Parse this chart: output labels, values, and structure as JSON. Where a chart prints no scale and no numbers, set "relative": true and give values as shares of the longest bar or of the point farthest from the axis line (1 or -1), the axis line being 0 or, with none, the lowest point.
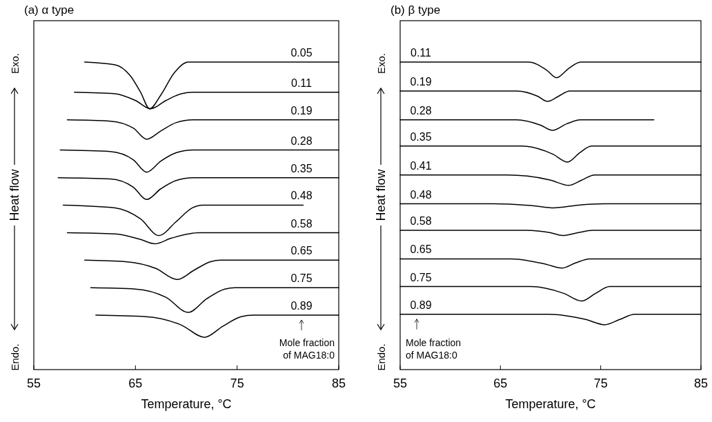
{
  "chart_data": [
    {
      "type": "line",
      "title": "(a) α type",
      "xlabel": "Temperature, °C",
      "ylabel": "Heat flow",
      "relative": true,
      "xlim": [
        55,
        85
      ],
      "xticks": [
        55,
        65,
        75,
        85
      ],
      "line_style": "solid",
      "annotations": [
        "Exo.",
        "Endo.",
        "Mole fraction\nof MAG18:0"
      ],
      "series": [
        {
          "name": "0.05",
          "color": "#000000",
          "x": [
            60.0,
            63.0,
            64.5,
            65.5,
            66.4,
            67.5,
            68.8,
            70.2,
            85
          ],
          "values": [
            1.0,
            0.991,
            0.955,
            0.902,
            0.848,
            0.893,
            0.964,
            1.0,
            1.0
          ]
        },
        {
          "name": "0.11",
          "color": "#000000",
          "x": [
            59.0,
            63.0,
            65.0,
            66.5,
            68.0,
            69.5,
            70.7,
            85
          ],
          "values": [
            0.902,
            0.897,
            0.875,
            0.848,
            0.875,
            0.897,
            0.902,
            0.902
          ]
        },
        {
          "name": "0.19",
          "color": "#000000",
          "x": [
            58.3,
            62.5,
            64.8,
            66.1,
            67.5,
            69.0,
            70.7,
            85
          ],
          "values": [
            0.812,
            0.808,
            0.785,
            0.749,
            0.776,
            0.803,
            0.812,
            0.812
          ]
        },
        {
          "name": "0.28",
          "color": "#000000",
          "x": [
            57.6,
            62.5,
            64.8,
            66.1,
            67.5,
            69.0,
            70.7,
            85
          ],
          "values": [
            0.714,
            0.709,
            0.682,
            0.642,
            0.678,
            0.705,
            0.714,
            0.714
          ]
        },
        {
          "name": "0.35",
          "color": "#000000",
          "x": [
            57.4,
            62.5,
            64.8,
            66.1,
            67.5,
            69.0,
            70.7,
            85
          ],
          "values": [
            0.624,
            0.62,
            0.593,
            0.553,
            0.588,
            0.615,
            0.624,
            0.624
          ]
        },
        {
          "name": "0.48",
          "color": "#000000",
          "x": [
            57.9,
            63.0,
            65.5,
            67.3,
            69.0,
            70.6,
            71.6,
            81.5
          ],
          "values": [
            0.535,
            0.526,
            0.49,
            0.436,
            0.481,
            0.526,
            0.535,
            0.535
          ]
        },
        {
          "name": "0.58",
          "color": "#000000",
          "x": [
            58.3,
            63.0,
            65.5,
            66.9,
            68.5,
            70.2,
            71.2,
            85
          ],
          "values": [
            0.445,
            0.441,
            0.423,
            0.409,
            0.427,
            0.441,
            0.445,
            0.445
          ]
        },
        {
          "name": "0.65",
          "color": "#000000",
          "x": [
            60.0,
            64.0,
            67.0,
            69.1,
            70.8,
            72.4,
            73.4,
            85
          ],
          "values": [
            0.356,
            0.351,
            0.329,
            0.293,
            0.324,
            0.351,
            0.356,
            0.356
          ]
        },
        {
          "name": "0.75",
          "color": "#000000",
          "x": [
            60.6,
            65.0,
            68.0,
            70.2,
            72.0,
            73.8,
            74.8,
            85
          ],
          "values": [
            0.266,
            0.262,
            0.235,
            0.186,
            0.23,
            0.262,
            0.266,
            0.266
          ]
        },
        {
          "name": "0.89",
          "color": "#000000",
          "x": [
            61.1,
            66.0,
            69.5,
            71.8,
            73.6,
            75.4,
            76.6,
            85
          ],
          "values": [
            0.177,
            0.172,
            0.145,
            0.105,
            0.141,
            0.172,
            0.177,
            0.177
          ]
        }
      ]
    },
    {
      "type": "line",
      "title": "(b) β type",
      "xlabel": "Temperature, °C",
      "ylabel": "Heat flow",
      "relative": true,
      "xlim": [
        55,
        85
      ],
      "xticks": [
        55,
        65,
        75,
        85
      ],
      "line_style": "solid",
      "annotations": [
        "Exo.",
        "Endo.",
        "Mole fraction\nof MAG18:0"
      ],
      "series": [
        {
          "name": "0.11",
          "color": "#000000",
          "x": [
            55,
            67.8,
            69.6,
            70.6,
            71.8,
            73.0,
            85
          ],
          "values": [
            1.0,
            1.0,
            0.974,
            0.949,
            0.979,
            1.0,
            1.0
          ]
        },
        {
          "name": "0.19",
          "color": "#000000",
          "x": [
            55,
            66.6,
            68.7,
            69.7,
            70.8,
            71.9,
            85
          ],
          "values": [
            0.906,
            0.906,
            0.889,
            0.872,
            0.889,
            0.906,
            0.906
          ]
        },
        {
          "name": "0.28",
          "color": "#000000",
          "x": [
            55,
            66.6,
            69.0,
            70.2,
            71.6,
            73.0,
            80.3
          ],
          "values": [
            0.812,
            0.812,
            0.795,
            0.778,
            0.799,
            0.812,
            0.812
          ]
        },
        {
          "name": "0.35",
          "color": "#000000",
          "x": [
            55,
            67.1,
            70.2,
            71.7,
            72.9,
            74.1,
            85
          ],
          "values": [
            0.727,
            0.727,
            0.701,
            0.675,
            0.705,
            0.727,
            0.727
          ]
        },
        {
          "name": "0.41",
          "color": "#000000",
          "x": [
            55,
            65.7,
            70.0,
            71.8,
            73.1,
            74.4,
            85
          ],
          "values": [
            0.633,
            0.633,
            0.616,
            0.599,
            0.616,
            0.633,
            0.633
          ]
        },
        {
          "name": "0.48",
          "color": "#000000",
          "x": [
            55,
            64.3,
            68.5,
            70.3,
            72.8,
            75.4,
            85
          ],
          "values": [
            0.539,
            0.539,
            0.532,
            0.526,
            0.535,
            0.539,
            0.539
          ]
        },
        {
          "name": "0.58",
          "color": "#000000",
          "x": [
            55,
            67.5,
            70.0,
            71.2,
            72.7,
            74.2,
            85
          ],
          "values": [
            0.453,
            0.453,
            0.445,
            0.436,
            0.445,
            0.453,
            0.453
          ]
        },
        {
          "name": "0.65",
          "color": "#000000",
          "x": [
            55,
            66.1,
            69.6,
            71.1,
            72.5,
            73.9,
            85
          ],
          "values": [
            0.36,
            0.36,
            0.342,
            0.33,
            0.347,
            0.36,
            0.36
          ]
        },
        {
          "name": "0.75",
          "color": "#000000",
          "x": [
            55,
            68.0,
            71.3,
            73.1,
            74.5,
            75.9,
            85
          ],
          "values": [
            0.27,
            0.27,
            0.248,
            0.223,
            0.248,
            0.27,
            0.27
          ]
        },
        {
          "name": "0.89",
          "color": "#000000",
          "x": [
            55,
            69.8,
            73.5,
            75.4,
            76.9,
            78.4,
            85
          ],
          "values": [
            0.18,
            0.18,
            0.163,
            0.146,
            0.163,
            0.18,
            0.18
          ]
        }
      ]
    }
  ]
}
